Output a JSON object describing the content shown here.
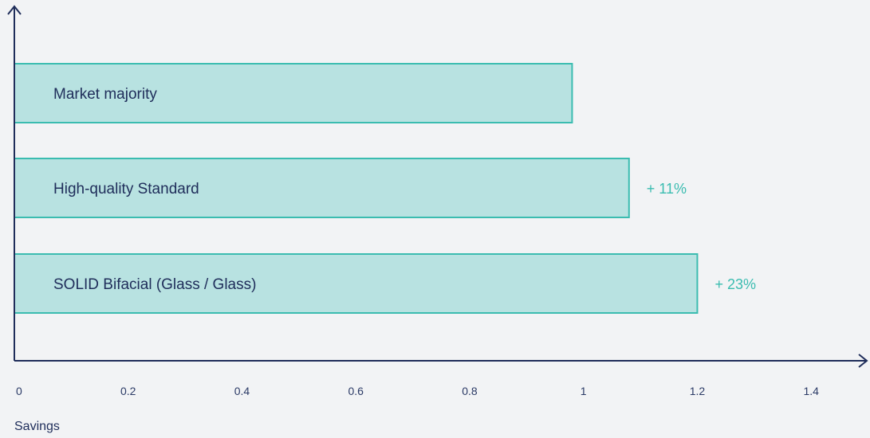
{
  "chart_data": {
    "type": "bar",
    "orientation": "horizontal",
    "categories": [
      "Market majority",
      "High-quality Standard",
      "SOLID Bifacial (Glass / Glass)"
    ],
    "values": [
      0.98,
      1.08,
      1.2
    ],
    "annotations": [
      "",
      "+ 11%",
      "+ 23%"
    ],
    "title": "",
    "xlabel": "Savings",
    "ylabel": "",
    "xlim": [
      0,
      1.5
    ],
    "xticks": [
      "0",
      "0.2",
      "0.4",
      "0.6",
      "0.8",
      "1",
      "1.2",
      "1.4"
    ],
    "xtick_values": [
      0,
      0.2,
      0.4,
      0.6,
      0.8,
      1,
      1.2,
      1.4
    ],
    "grid": false,
    "legend": "none"
  },
  "colors": {
    "bar_fill": "#b8e2e1",
    "bar_stroke": "#3bbcb0",
    "axis": "#1f2d5a",
    "text": "#1f2d5a",
    "annotation": "#3bbcb0"
  }
}
